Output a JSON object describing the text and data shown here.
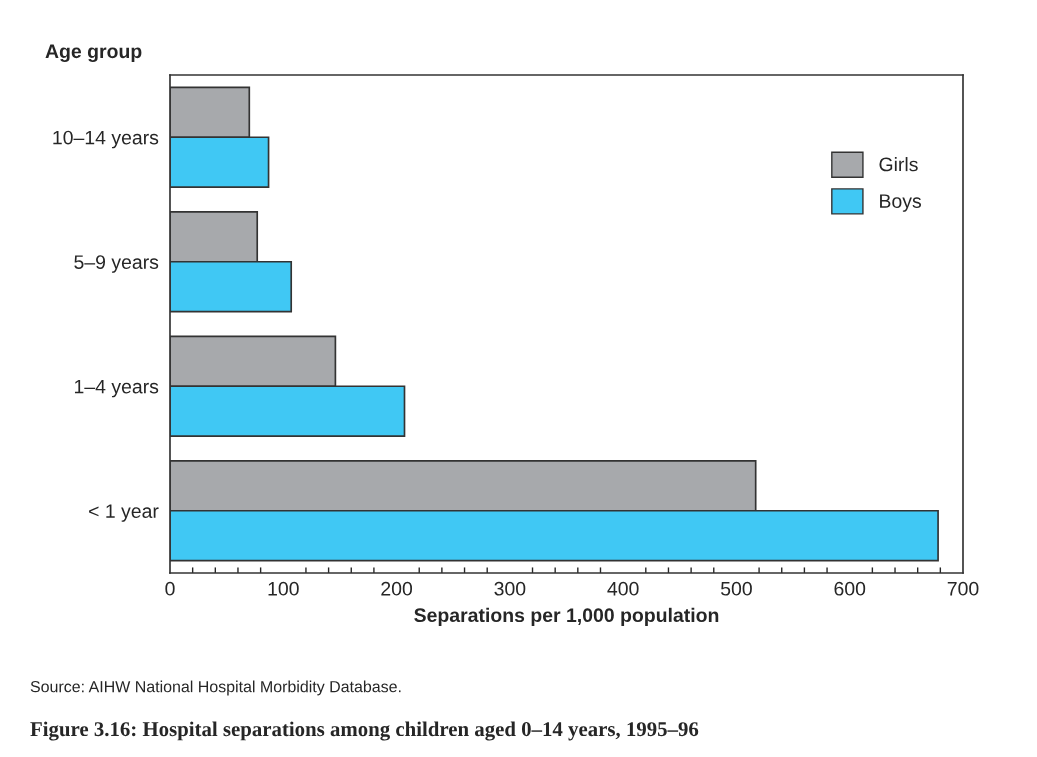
{
  "chart_data": {
    "type": "bar",
    "orientation": "horizontal",
    "title": "Figure 3.16: Hospital separations among children aged 0–14 years, 1995–96",
    "xlabel": "Separations per 1,000 population",
    "ylabel": "Age group",
    "categories": [
      "10–14 years",
      "5–9 years",
      "1–4 years",
      "< 1 year"
    ],
    "series": [
      {
        "name": "Girls",
        "color": "#a7a9ac",
        "values": [
          70,
          77,
          146,
          517
        ]
      },
      {
        "name": "Boys",
        "color": "#40c8f4",
        "values": [
          87,
          107,
          207,
          678
        ]
      }
    ],
    "xlim": [
      0,
      700
    ],
    "xticks": [
      0,
      100,
      200,
      300,
      400,
      500,
      600,
      700
    ],
    "annotations": [
      "Source: AIHW National Hospital Morbidity Database."
    ],
    "grid": false,
    "legend": "top right"
  }
}
